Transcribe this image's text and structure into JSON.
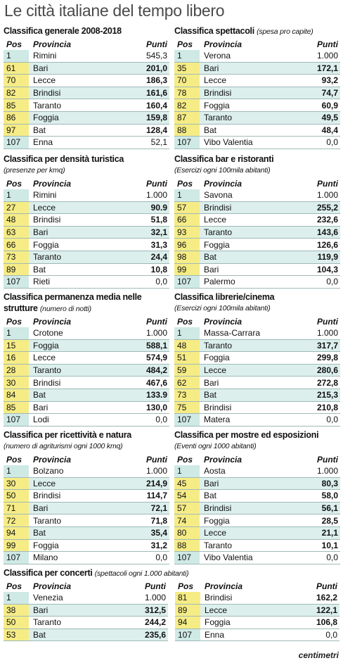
{
  "title": "Le città italiane del tempo libero",
  "columns": [
    "Pos",
    "Provincia",
    "Punti"
  ],
  "tables": [
    {
      "title": "Classifica generale 2008-2018",
      "rows": [
        [
          "1",
          "Rimini",
          "545,3"
        ],
        [
          "61",
          "Bari",
          "201,0"
        ],
        [
          "70",
          "Lecce",
          "186,3"
        ],
        [
          "82",
          "Brindisi",
          "161,6"
        ],
        [
          "85",
          "Taranto",
          "160,4"
        ],
        [
          "86",
          "Foggia",
          "159,8"
        ],
        [
          "97",
          "Bat",
          "128,4"
        ],
        [
          "107",
          "Enna",
          "52,1"
        ]
      ]
    },
    {
      "title": "Classifica spettacoli",
      "subtitle": "(spesa pro capite)",
      "rows": [
        [
          "1",
          "Verona",
          "1.000"
        ],
        [
          "35",
          "Bari",
          "172,1"
        ],
        [
          "70",
          "Lecce",
          "93,2"
        ],
        [
          "78",
          "Brindisi",
          "74,7"
        ],
        [
          "82",
          "Foggia",
          "60,9"
        ],
        [
          "87",
          "Taranto",
          "49,5"
        ],
        [
          "88",
          "Bat",
          "48,4"
        ],
        [
          "107",
          "Vibo Valentia",
          "0,0"
        ]
      ]
    },
    {
      "title": "Classifica per densità turistica",
      "subtitle": "(presenze per kmq)",
      "rows": [
        [
          "1",
          "Rimini",
          "1.000"
        ],
        [
          "27",
          "Lecce",
          "90.9"
        ],
        [
          "48",
          "Brindisi",
          "51,8"
        ],
        [
          "63",
          "Bari",
          "32,1"
        ],
        [
          "66",
          "Foggia",
          "31,3"
        ],
        [
          "73",
          "Taranto",
          "24,4"
        ],
        [
          "89",
          "Bat",
          "10,8"
        ],
        [
          "107",
          "Rieti",
          "0,0"
        ]
      ]
    },
    {
      "title": "Classifica bar e ristoranti",
      "subtitle": "(Esercizi ogni 100mila abitanti)",
      "rows": [
        [
          "1",
          "Savona",
          "1.000"
        ],
        [
          "57",
          "Brindisi",
          "255,2"
        ],
        [
          "66",
          "Lecce",
          "232,6"
        ],
        [
          "93",
          "Taranto",
          "143,6"
        ],
        [
          "96",
          "Foggia",
          "126,6"
        ],
        [
          "98",
          "Bat",
          "119,9"
        ],
        [
          "99",
          "Bari",
          "104,3"
        ],
        [
          "107",
          "Palermo",
          "0,0"
        ]
      ]
    },
    {
      "title": "Classifica permanenza media nelle strutture",
      "subtitle": "(numero di notti)",
      "rows": [
        [
          "1",
          "Crotone",
          "1.000"
        ],
        [
          "15",
          "Foggia",
          "588,1"
        ],
        [
          "16",
          "Lecce",
          "574,9"
        ],
        [
          "28",
          "Taranto",
          "484,2"
        ],
        [
          "30",
          "Brindisi",
          "467,6"
        ],
        [
          "84",
          "Bat",
          "133.9"
        ],
        [
          "85",
          "Bari",
          "130,0"
        ],
        [
          "107",
          "Lodi",
          "0,0"
        ]
      ]
    },
    {
      "title": "Classifica librerie/cinema",
      "subtitle": "(Esercizi ogni 100mila abitanti)",
      "rows": [
        [
          "1",
          "Massa-Carrara",
          "1.000"
        ],
        [
          "48",
          "Taranto",
          "317,7"
        ],
        [
          "51",
          "Foggia",
          "299,8"
        ],
        [
          "59",
          "Lecce",
          "280,6"
        ],
        [
          "62",
          "Bari",
          "272,8"
        ],
        [
          "73",
          "Bat",
          "215,3"
        ],
        [
          "75",
          "Brindisi",
          "210,8"
        ],
        [
          "107",
          "Matera",
          "0,0"
        ]
      ]
    },
    {
      "title": "Classifica per ricettività e natura",
      "subtitle": "(numero di agriturismi ogni 1000 kmq)",
      "rows": [
        [
          "1",
          "Bolzano",
          "1.000"
        ],
        [
          "30",
          "Lecce",
          "214,9"
        ],
        [
          "50",
          "Brindisi",
          "114,7"
        ],
        [
          "71",
          "Bari",
          "72,1"
        ],
        [
          "72",
          "Taranto",
          "71,8"
        ],
        [
          "94",
          "Bat",
          "35,4"
        ],
        [
          "99",
          "Foggia",
          "31,2"
        ],
        [
          "107",
          "Milano",
          "0,0"
        ]
      ]
    },
    {
      "title": "Classifica per mostre ed esposizioni",
      "subtitle": "(Eventi ogni 1000 abitanti)",
      "rows": [
        [
          "1",
          "Aosta",
          "1.000"
        ],
        [
          "45",
          "Bari",
          "80,3"
        ],
        [
          "54",
          "Bat",
          "58,0"
        ],
        [
          "57",
          "Brindisi",
          "56,1"
        ],
        [
          "74",
          "Foggia",
          "28,5"
        ],
        [
          "80",
          "Lecce",
          "21,1"
        ],
        [
          "88",
          "Taranto",
          "10,1"
        ],
        [
          "107",
          "Vibo Valentia",
          "0,0"
        ]
      ]
    },
    {
      "title": "Classifica per concerti",
      "subtitle": "(spettacoli ogni 1.000 abitanti)",
      "rows": [
        [
          "1",
          "Venezia",
          "1.000"
        ],
        [
          "38",
          "Bari",
          "312,5"
        ],
        [
          "50",
          "Taranto",
          "244,2"
        ],
        [
          "53",
          "Bat",
          "235,6"
        ],
        [
          "81",
          "Brindisi",
          "162,2"
        ],
        [
          "89",
          "Lecce",
          "122,1"
        ],
        [
          "94",
          "Foggia",
          "106,8"
        ],
        [
          "107",
          "Enna",
          "0,0"
        ]
      ]
    }
  ],
  "footer": "centimetri"
}
